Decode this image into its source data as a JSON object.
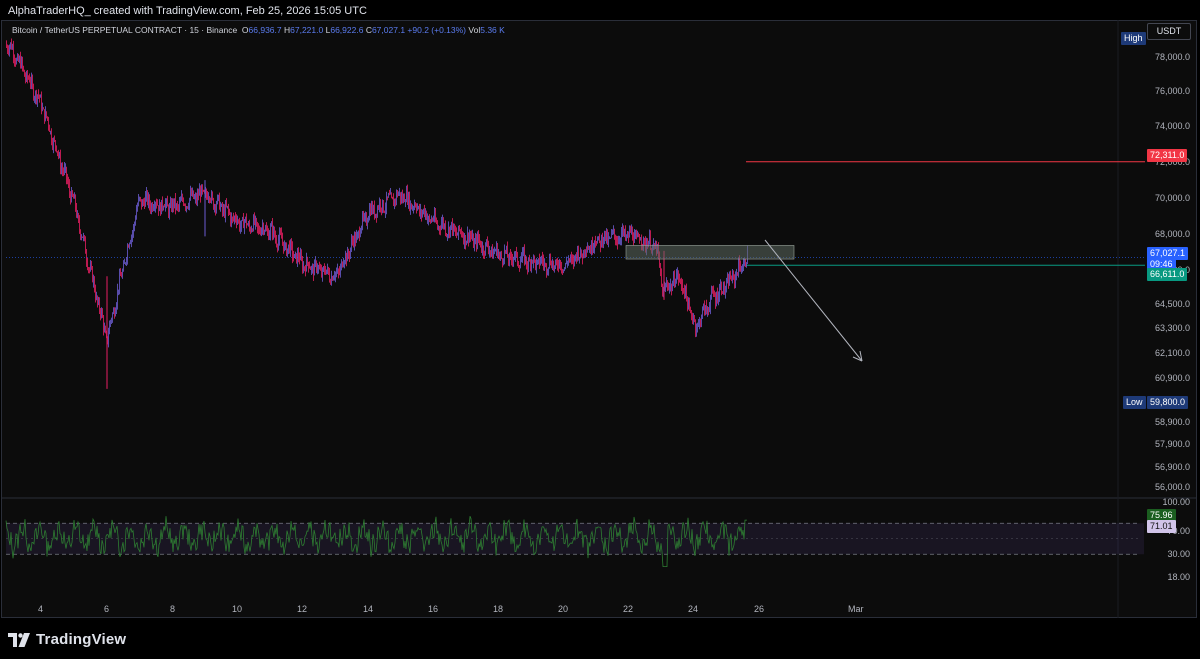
{
  "attribution": "AlphaTraderHQ_ created with TradingView.com, Feb 25, 2026 15:05 UTC",
  "legend": {
    "symbol": "Bitcoin / TetherUS PERPETUAL CONTRACT · 15 · Binance",
    "o_key": "O",
    "o_val": "66,936.7",
    "h_key": "H",
    "h_val": "67,221.0",
    "l_key": "L",
    "l_val": "66,922.6",
    "c_key": "C",
    "c_val": "67,027.1",
    "change": "+90.2 (+0.13%)",
    "vol_key": "Vol",
    "vol_val": "5.36 K"
  },
  "currency": "USDT",
  "price_axis": [
    "78,000.0",
    "76,000.0",
    "74,000.0",
    "72,000.0",
    "70,000.0",
    "68,000.0",
    "66,000.0",
    "64,500.0",
    "63,300.0",
    "62,100.0",
    "60,900.0",
    "58,900.0",
    "57,900.0",
    "56,900.0",
    "56,000.0"
  ],
  "tags": {
    "high_label": "High",
    "level_red": "72,311.0",
    "last_price": "67,027.1",
    "countdown": "09:46",
    "level_green": "66,611.0",
    "low_label": "Low",
    "low_value": "59,800.0",
    "rsi_value": "75.96",
    "rsi_ma_value": "71.01"
  },
  "rsi_axis": [
    "100.00",
    "70.00",
    "30.00",
    "18.00"
  ],
  "date_axis": [
    "4",
    "6",
    "8",
    "10",
    "12",
    "14",
    "16",
    "18",
    "20",
    "22",
    "24",
    "26",
    "Mar"
  ],
  "brand": "TradingView",
  "colors": {
    "candle_up": "#6c5dd3",
    "candle_down": "#e91e63",
    "rsi_line": "#2e7d32",
    "red_level": "#f23645",
    "green_level": "#089981",
    "last_price_tag": "#2962ff",
    "low_high_tag": "#1e3a78"
  },
  "chart_data": {
    "type": "candlestick",
    "title": "Bitcoin / TetherUS PERPETUAL CONTRACT · 15 · Binance",
    "x_axis_dates": [
      "4",
      "6",
      "8",
      "10",
      "12",
      "14",
      "16",
      "18",
      "20",
      "22",
      "24",
      "26",
      "Mar"
    ],
    "approx_close_path": [
      {
        "date": "3",
        "price": 78800
      },
      {
        "date": "4",
        "price": 75500
      },
      {
        "date": "5",
        "price": 70000
      },
      {
        "date": "6",
        "price": 62500
      },
      {
        "date": "6.5",
        "price": 66500
      },
      {
        "date": "7",
        "price": 70200
      },
      {
        "date": "8",
        "price": 69800
      },
      {
        "date": "9",
        "price": 70600
      },
      {
        "date": "10",
        "price": 69000
      },
      {
        "date": "11",
        "price": 68500
      },
      {
        "date": "12",
        "price": 66700
      },
      {
        "date": "13",
        "price": 66000
      },
      {
        "date": "14",
        "price": 69500
      },
      {
        "date": "15",
        "price": 70500
      },
      {
        "date": "16",
        "price": 69000
      },
      {
        "date": "17",
        "price": 68200
      },
      {
        "date": "18",
        "price": 67200
      },
      {
        "date": "19",
        "price": 66800
      },
      {
        "date": "20",
        "price": 66600
      },
      {
        "date": "21",
        "price": 68000
      },
      {
        "date": "22",
        "price": 68300
      },
      {
        "date": "22.8",
        "price": 67600
      },
      {
        "date": "23",
        "price": 65200
      },
      {
        "date": "23.5",
        "price": 66000
      },
      {
        "date": "24",
        "price": 63200
      },
      {
        "date": "24.5",
        "price": 64800
      },
      {
        "date": "25",
        "price": 65600
      },
      {
        "date": "25.6",
        "price": 67027
      }
    ],
    "high": 79000,
    "low": 59800,
    "levels": [
      {
        "price": 72311,
        "color": "red"
      },
      {
        "price": 66611,
        "color": "green"
      }
    ],
    "zone": {
      "from_price": 66950,
      "to_price": 67700
    },
    "rsi": {
      "upper": 70,
      "lower": 30,
      "last": 75.96,
      "ma": 71.01
    }
  }
}
